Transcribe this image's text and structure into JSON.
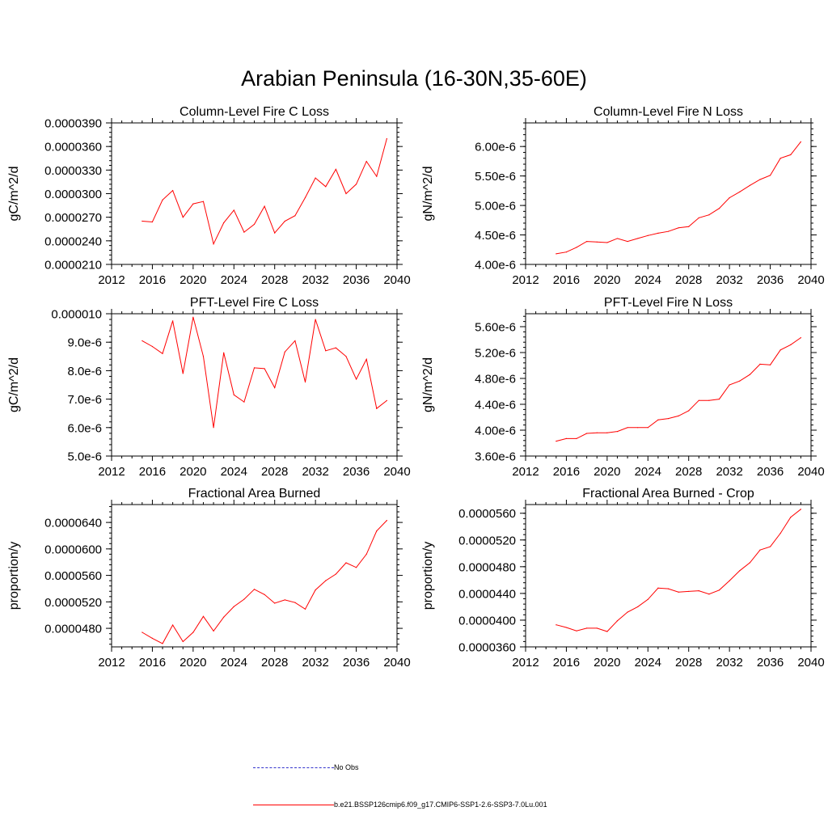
{
  "title": "Arabian Peninsula (16-30N,35-60E)",
  "chart_data": [
    {
      "type": "line",
      "title": "Column-Level Fire C Loss",
      "xlabel": "",
      "ylabel": "gC/m^2/d",
      "xlim": [
        2012,
        2040
      ],
      "ylim": [
        2.1e-05,
        3.9e-05
      ],
      "xticks": [
        "2012",
        "2016",
        "2020",
        "2024",
        "2028",
        "2032",
        "2036",
        "2040"
      ],
      "yticks": [
        "0.0000210",
        "0.0000240",
        "0.0000270",
        "0.0000300",
        "0.0000330",
        "0.0000360",
        "0.0000390"
      ],
      "x": [
        2015,
        2016,
        2017,
        2018,
        2019,
        2020,
        2021,
        2022,
        2023,
        2024,
        2025,
        2026,
        2027,
        2028,
        2029,
        2030,
        2031,
        2032,
        2033,
        2034,
        2035,
        2036,
        2037,
        2038,
        2039
      ],
      "series": [
        {
          "name": "b.e21.BSSP126cmip6.f09_g17.CMIP6-SSP1-2.6-SSP3-7.0Lu.001",
          "color": "#ff0000",
          "values": [
            2.65e-05,
            2.64e-05,
            2.92e-05,
            3.04e-05,
            2.7e-05,
            2.87e-05,
            2.9e-05,
            2.36e-05,
            2.63e-05,
            2.79e-05,
            2.51e-05,
            2.61e-05,
            2.84e-05,
            2.5e-05,
            2.65e-05,
            2.72e-05,
            2.95e-05,
            3.2e-05,
            3.09e-05,
            3.31e-05,
            3e-05,
            3.12e-05,
            3.41e-05,
            3.22e-05,
            3.7e-05
          ]
        }
      ]
    },
    {
      "type": "line",
      "title": "Column-Level Fire N Loss",
      "xlabel": "",
      "ylabel": "gN/m^2/d",
      "xlim": [
        2012,
        2040
      ],
      "ylim": [
        4e-06,
        6.4e-06
      ],
      "xticks": [
        "2012",
        "2016",
        "2020",
        "2024",
        "2028",
        "2032",
        "2036",
        "2040"
      ],
      "yticks": [
        "4.00e-6",
        "4.50e-6",
        "5.00e-6",
        "5.50e-6",
        "6.00e-6"
      ],
      "x": [
        2015,
        2016,
        2017,
        2018,
        2019,
        2020,
        2021,
        2022,
        2023,
        2024,
        2025,
        2026,
        2027,
        2028,
        2029,
        2030,
        2031,
        2032,
        2033,
        2034,
        2035,
        2036,
        2037,
        2038,
        2039
      ],
      "series": [
        {
          "name": "b.e21.BSSP126cmip6.f09_g17.CMIP6-SSP1-2.6-SSP3-7.0Lu.001",
          "color": "#ff0000",
          "values": [
            4.18e-06,
            4.21e-06,
            4.29e-06,
            4.39e-06,
            4.38e-06,
            4.37e-06,
            4.44e-06,
            4.39e-06,
            4.44e-06,
            4.49e-06,
            4.53e-06,
            4.56e-06,
            4.62e-06,
            4.64e-06,
            4.79e-06,
            4.84e-06,
            4.95e-06,
            5.13e-06,
            5.23e-06,
            5.34e-06,
            5.44e-06,
            5.51e-06,
            5.8e-06,
            5.86e-06,
            6.08e-06
          ]
        }
      ]
    },
    {
      "type": "line",
      "title": "PFT-Level Fire C Loss",
      "xlabel": "",
      "ylabel": "gC/m^2/d",
      "xlim": [
        2012,
        2040
      ],
      "ylim": [
        5e-06,
        1e-05
      ],
      "xticks": [
        "2012",
        "2016",
        "2020",
        "2024",
        "2028",
        "2032",
        "2036",
        "2040"
      ],
      "yticks": [
        "5.0e-6",
        "6.0e-6",
        "7.0e-6",
        "8.0e-6",
        "9.0e-6",
        "0.000010"
      ],
      "x": [
        2015,
        2016,
        2017,
        2018,
        2019,
        2020,
        2021,
        2022,
        2023,
        2024,
        2025,
        2026,
        2027,
        2028,
        2029,
        2030,
        2031,
        2032,
        2033,
        2034,
        2035,
        2036,
        2037,
        2038,
        2039
      ],
      "series": [
        {
          "name": "b.e21.BSSP126cmip6.f09_g17.CMIP6-SSP1-2.6-SSP3-7.0Lu.001",
          "color": "#ff0000",
          "values": [
            9.05e-06,
            8.85e-06,
            8.6e-06,
            9.75e-06,
            7.9e-06,
            9.88e-06,
            8.5e-06,
            6e-06,
            8.63e-06,
            7.15e-06,
            6.9e-06,
            8.1e-06,
            8.07e-06,
            7.4e-06,
            8.66e-06,
            9.05e-06,
            7.6e-06,
            9.8e-06,
            8.7e-06,
            8.8e-06,
            8.5e-06,
            7.7e-06,
            8.4e-06,
            6.67e-06,
            6.95e-06
          ]
        }
      ]
    },
    {
      "type": "line",
      "title": "PFT-Level Fire N Loss",
      "xlabel": "",
      "ylabel": "gN/m^2/d",
      "xlim": [
        2012,
        2040
      ],
      "ylim": [
        3.6e-06,
        5.8e-06
      ],
      "xticks": [
        "2012",
        "2016",
        "2020",
        "2024",
        "2028",
        "2032",
        "2036",
        "2040"
      ],
      "yticks": [
        "3.60e-6",
        "4.00e-6",
        "4.40e-6",
        "4.80e-6",
        "5.20e-6",
        "5.60e-6"
      ],
      "x": [
        2015,
        2016,
        2017,
        2018,
        2019,
        2020,
        2021,
        2022,
        2023,
        2024,
        2025,
        2026,
        2027,
        2028,
        2029,
        2030,
        2031,
        2032,
        2033,
        2034,
        2035,
        2036,
        2037,
        2038,
        2039
      ],
      "series": [
        {
          "name": "b.e21.BSSP126cmip6.f09_g17.CMIP6-SSP1-2.6-SSP3-7.0Lu.001",
          "color": "#ff0000",
          "values": [
            3.83e-06,
            3.87e-06,
            3.87e-06,
            3.95e-06,
            3.96e-06,
            3.96e-06,
            3.98e-06,
            4.04e-06,
            4.04e-06,
            4.04e-06,
            4.16e-06,
            4.18e-06,
            4.22e-06,
            4.3e-06,
            4.46e-06,
            4.46e-06,
            4.48e-06,
            4.7e-06,
            4.76e-06,
            4.86e-06,
            5.02e-06,
            5.01e-06,
            5.24e-06,
            5.32e-06,
            5.43e-06
          ]
        }
      ]
    },
    {
      "type": "line",
      "title": "Fractional Area Burned",
      "xlabel": "",
      "ylabel": "proportion/y",
      "xlim": [
        2012,
        2040
      ],
      "ylim": [
        4.52e-05,
        6.67e-05
      ],
      "xticks": [
        "2012",
        "2016",
        "2020",
        "2024",
        "2028",
        "2032",
        "2036",
        "2040"
      ],
      "yticks": [
        "0.0000480",
        "0.0000520",
        "0.0000560",
        "0.0000600",
        "0.0000640"
      ],
      "x": [
        2015,
        2016,
        2017,
        2018,
        2019,
        2020,
        2021,
        2022,
        2023,
        2024,
        2025,
        2026,
        2027,
        2028,
        2029,
        2030,
        2031,
        2032,
        2033,
        2034,
        2035,
        2036,
        2037,
        2038,
        2039
      ],
      "series": [
        {
          "name": "b.e21.BSSP126cmip6.f09_g17.CMIP6-SSP1-2.6-SSP3-7.0Lu.001",
          "color": "#ff0000",
          "values": [
            4.74e-05,
            4.65e-05,
            4.57e-05,
            4.85e-05,
            4.6e-05,
            4.74e-05,
            4.98e-05,
            4.76e-05,
            4.97e-05,
            5.13e-05,
            5.24e-05,
            5.39e-05,
            5.31e-05,
            5.18e-05,
            5.23e-05,
            5.19e-05,
            5.09e-05,
            5.38e-05,
            5.52e-05,
            5.62e-05,
            5.79e-05,
            5.72e-05,
            5.92e-05,
            6.27e-05,
            6.43e-05
          ]
        }
      ]
    },
    {
      "type": "line",
      "title": "Fractional Area Burned - Crop",
      "xlabel": "",
      "ylabel": "proportion/y",
      "xlim": [
        2012,
        2040
      ],
      "ylim": [
        3.6e-05,
        5.73e-05
      ],
      "xticks": [
        "2012",
        "2016",
        "2020",
        "2024",
        "2028",
        "2032",
        "2036",
        "2040"
      ],
      "yticks": [
        "0.0000360",
        "0.0000400",
        "0.0000440",
        "0.0000480",
        "0.0000520",
        "0.0000560"
      ],
      "x": [
        2015,
        2016,
        2017,
        2018,
        2019,
        2020,
        2021,
        2022,
        2023,
        2024,
        2025,
        2026,
        2027,
        2028,
        2029,
        2030,
        2031,
        2032,
        2033,
        2034,
        2035,
        2036,
        2037,
        2038,
        2039
      ],
      "series": [
        {
          "name": "b.e21.BSSP126cmip6.f09_g17.CMIP6-SSP1-2.6-SSP3-7.0Lu.001",
          "color": "#ff0000",
          "values": [
            3.93e-05,
            3.89e-05,
            3.84e-05,
            3.88e-05,
            3.88e-05,
            3.83e-05,
            3.99e-05,
            4.12e-05,
            4.2e-05,
            4.31e-05,
            4.48e-05,
            4.47e-05,
            4.42e-05,
            4.43e-05,
            4.44e-05,
            4.39e-05,
            4.45e-05,
            4.59e-05,
            4.74e-05,
            4.86e-05,
            5.05e-05,
            5.1e-05,
            5.3e-05,
            5.54e-05,
            5.66e-05
          ]
        }
      ]
    }
  ],
  "legend": {
    "obs_label": "No Obs",
    "obs_color": "#3333cc",
    "model_label": "b.e21.BSSP126cmip6.f09_g17.CMIP6-SSP1-2.6-SSP3-7.0Lu.001",
    "model_color": "#ff0000"
  }
}
